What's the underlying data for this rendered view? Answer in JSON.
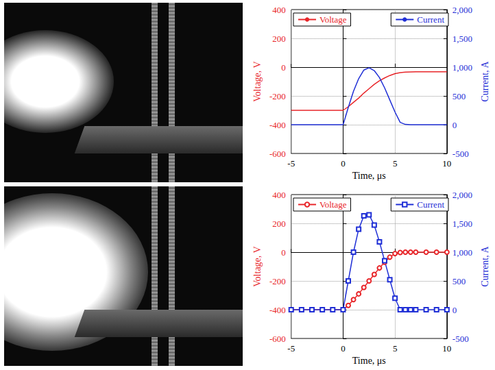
{
  "chart_data": [
    {
      "type": "line",
      "x": [
        -5,
        -4,
        -3,
        -2,
        -1,
        0,
        0.5,
        1,
        1.5,
        2,
        2.5,
        3,
        3.5,
        4,
        4.5,
        5,
        5.5,
        6,
        6.5,
        7,
        8,
        9,
        10
      ],
      "xlabel": "Time, μs",
      "ylabel": "Voltage, V",
      "y2label": "Current, A",
      "xlim": [
        -5,
        10
      ],
      "xticks": [
        -5,
        0,
        5,
        10
      ],
      "ylim": [
        -600,
        400
      ],
      "yticks": [
        -600,
        -400,
        -200,
        0,
        200,
        400
      ],
      "y2lim": [
        -500,
        2000
      ],
      "y2ticks": [
        -500,
        0,
        500,
        1000,
        1500,
        2000
      ],
      "grid": true,
      "legend": "top",
      "series": [
        {
          "name": "Voltage",
          "color": "#e8262a",
          "marker": "none",
          "line_style": "solid",
          "values": [
            -300,
            -300,
            -300,
            -300,
            -300,
            -300,
            -275,
            -245,
            -215,
            -180,
            -150,
            -120,
            -95,
            -75,
            -58,
            -45,
            -38,
            -35,
            -33,
            -32,
            -32,
            -32,
            -32
          ]
        },
        {
          "name": "Current",
          "color": "#1f2fd6",
          "marker": "none",
          "line_style": "solid",
          "axis": "y2",
          "values": [
            0,
            0,
            0,
            0,
            0,
            0,
            300,
            580,
            800,
            950,
            990,
            940,
            820,
            640,
            430,
            220,
            40,
            5,
            0,
            0,
            0,
            0,
            0
          ]
        }
      ]
    },
    {
      "type": "line",
      "x": [
        -5,
        -4,
        -3,
        -2,
        -1,
        0,
        0.5,
        1,
        1.5,
        2,
        2.5,
        3,
        3.5,
        4,
        4.5,
        5,
        5.5,
        6,
        6.5,
        7,
        8,
        9,
        10
      ],
      "xlabel": "Time, μs",
      "ylabel": "Voltage, V",
      "y2label": "Current, A",
      "xlim": [
        -5,
        10
      ],
      "xticks": [
        -5,
        0,
        5,
        10
      ],
      "ylim": [
        -600,
        400
      ],
      "yticks": [
        -600,
        -400,
        -200,
        0,
        200,
        400
      ],
      "y2lim": [
        -500,
        2000
      ],
      "y2ticks": [
        -500,
        0,
        500,
        1000,
        1500,
        2000
      ],
      "grid": true,
      "legend": "top",
      "series": [
        {
          "name": "Voltage",
          "color": "#e8262a",
          "marker": "circle",
          "line_style": "solid",
          "values": [
            -400,
            -400,
            -400,
            -400,
            -400,
            -400,
            -370,
            -330,
            -290,
            -245,
            -200,
            -155,
            -110,
            -70,
            -35,
            -10,
            -2,
            0,
            0,
            0,
            0,
            0,
            0
          ]
        },
        {
          "name": "Current",
          "color": "#1f2fd6",
          "marker": "square",
          "line_style": "solid",
          "axis": "y2",
          "values": [
            0,
            0,
            0,
            0,
            0,
            0,
            500,
            1000,
            1400,
            1630,
            1650,
            1470,
            1180,
            850,
            520,
            200,
            0,
            0,
            0,
            0,
            0,
            0,
            0
          ]
        }
      ]
    }
  ]
}
